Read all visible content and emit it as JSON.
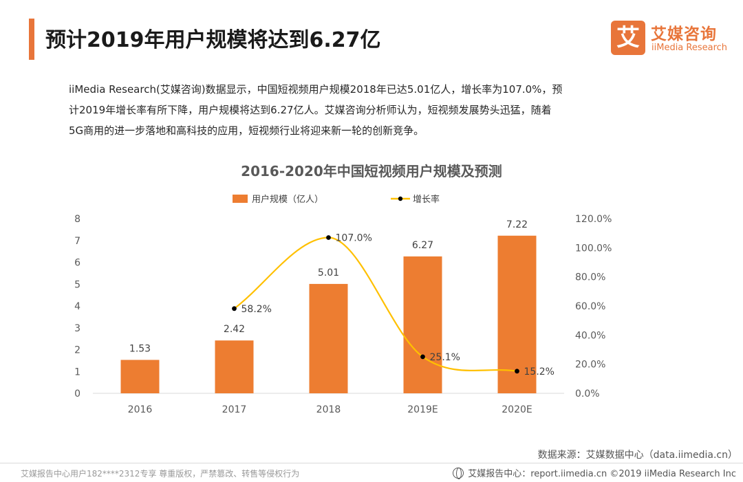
{
  "header": {
    "title": "预计2019年用户规模将达到6.27亿",
    "accent_color": "#e8753a"
  },
  "logo": {
    "mark_char": "艾",
    "cn": "艾媒咨询",
    "en": "iiMedia Research"
  },
  "description": {
    "lines": [
      "iiMedia Research(艾媒咨询)数据显示，中国短视频用户规模2018年已达5.01亿人，增长率为107.0%，预",
      "计2019年增长率有所下降，用户规模将达到6.27亿人。艾媒咨询分析师认为，短视频发展势头迅猛，随着",
      "5G商用的进一步落地和高科技的应用，短视频行业将迎来新一轮的创新竞争。"
    ]
  },
  "chart_data": {
    "type": "bar",
    "title": "2016-2020年中国短视频用户规模及预测",
    "categories": [
      "2016",
      "2017",
      "2018",
      "2019E",
      "2020E"
    ],
    "series": [
      {
        "name": "用户规模（亿人）",
        "type": "bar",
        "axis": "left",
        "color": "#ed7d31",
        "values": [
          1.53,
          2.42,
          5.01,
          6.27,
          7.22
        ],
        "labels": [
          "1.53",
          "2.42",
          "5.01",
          "6.27",
          "7.22"
        ]
      },
      {
        "name": "增长率",
        "type": "line",
        "axis": "right",
        "smooth": true,
        "color": "#ffc000",
        "marker_color": "#000000",
        "values": [
          null,
          58.2,
          107.0,
          25.1,
          15.2
        ],
        "labels": [
          "",
          "58.2%",
          "107.0%",
          "25.1%",
          "15.2%"
        ]
      }
    ],
    "ylim": [
      0,
      8
    ],
    "y_ticks": [
      "0",
      "1",
      "2",
      "3",
      "4",
      "5",
      "6",
      "7",
      "8"
    ],
    "y2lim": [
      0,
      120
    ],
    "y2_ticks": [
      "0.0%",
      "20.0%",
      "40.0%",
      "60.0%",
      "80.0%",
      "100.0%",
      "120.0%"
    ],
    "grid": false,
    "legend_position": "top"
  },
  "source_note": "数据来源：艾媒数据中心（data.iimedia.cn）",
  "footer": {
    "left": "艾媒报告中心用户182****2312专享 尊重版权，严禁篡改、转售等侵权行为",
    "right": "艾媒报告中心：report.iimedia.cn  ©2019  iiMedia Research  Inc"
  }
}
